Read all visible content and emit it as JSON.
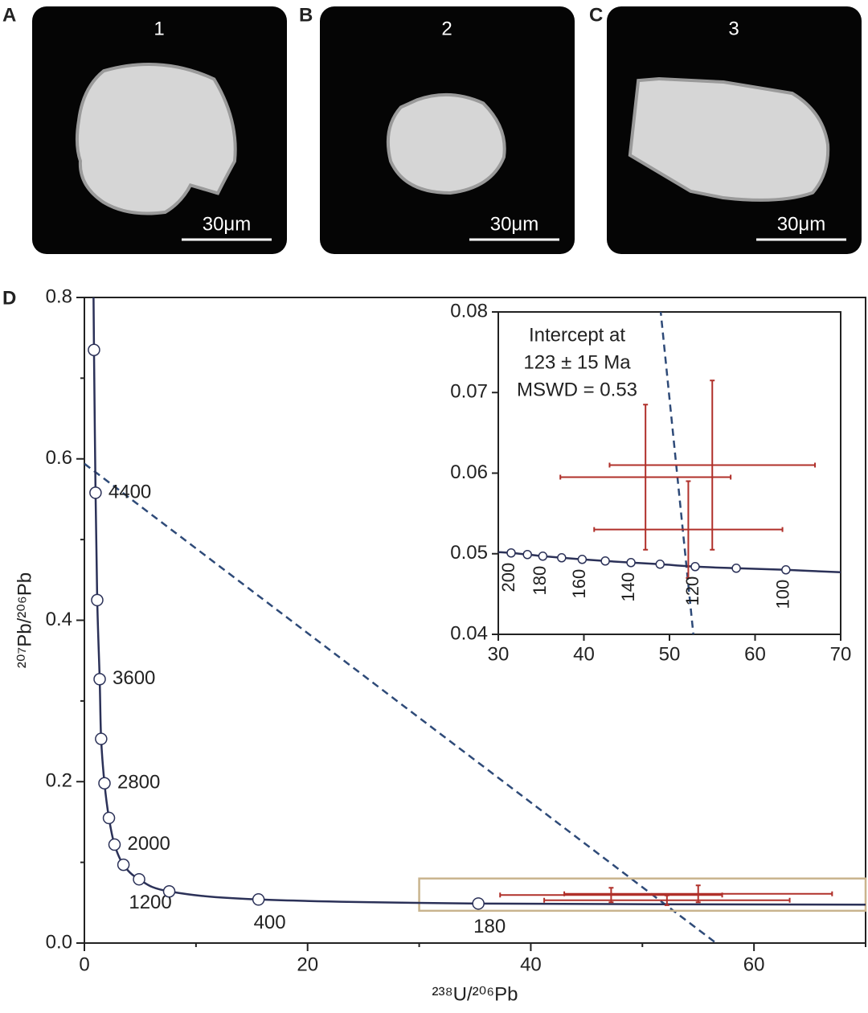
{
  "panels": [
    {
      "letter": "A",
      "number": "1",
      "scale_bar": "30μm"
    },
    {
      "letter": "B",
      "number": "2",
      "scale_bar": "30μm"
    },
    {
      "letter": "C",
      "number": "3",
      "scale_bar": "30μm"
    }
  ],
  "chart_data": [
    {
      "type": "line",
      "label": "D",
      "xlabel": "²³⁸U/²⁰⁶Pb",
      "ylabel": "²⁰⁷Pb/²⁰⁶Pb",
      "xlim": [
        0,
        70
      ],
      "ylim": [
        0,
        0.8
      ],
      "xticks": [
        0,
        20,
        40,
        60
      ],
      "yticks": [
        {
          "value": 0,
          "label": "0.0"
        },
        0.2,
        0.4,
        0.6,
        0.8
      ],
      "xminorticks": [
        10,
        30,
        50,
        70
      ],
      "yminorticks": [
        0.1,
        0.3,
        0.5,
        0.7
      ],
      "concordia": {
        "color": "#2b3158",
        "x": [
          0.82,
          0.86,
          1.0,
          1.15,
          1.37,
          1.5,
          1.8,
          2.2,
          2.7,
          3.5,
          4.9,
          7.6,
          15.6,
          35.3,
          70
        ],
        "y": [
          0.8,
          0.735,
          0.558,
          0.425,
          0.327,
          0.253,
          0.198,
          0.155,
          0.122,
          0.097,
          0.079,
          0.064,
          0.054,
          0.049,
          0.0476
        ]
      },
      "concordia_ages": {
        "x": [
          0.86,
          1.0,
          1.15,
          1.37,
          1.5,
          1.8,
          2.2,
          2.7,
          3.5,
          4.9,
          7.6,
          15.6,
          35.3
        ],
        "y": [
          0.735,
          0.558,
          0.425,
          0.327,
          0.253,
          0.198,
          0.155,
          0.122,
          0.097,
          0.079,
          0.064,
          0.054,
          0.049
        ],
        "labels": [
          null,
          4400,
          null,
          3600,
          null,
          2800,
          null,
          2000,
          null,
          1200,
          null,
          400,
          180
        ]
      },
      "discordia": {
        "color": "#2e4a78",
        "x": [
          0,
          56.6
        ],
        "y": [
          0.594,
          0
        ]
      },
      "points": {
        "color": "#b0302a",
        "x": [
          47.2,
          55,
          52.2
        ],
        "y": [
          0.0595,
          0.061,
          0.053
        ],
        "xerr": [
          9.95,
          12,
          11
        ],
        "yerr": [
          0.009,
          0.0105,
          0.006
        ]
      }
    },
    {
      "type": "inset",
      "xlim": [
        30,
        70
      ],
      "ylim": [
        0.04,
        0.08
      ],
      "xticks": [
        30,
        40,
        50,
        60,
        70
      ],
      "yticks": [
        0.04,
        0.05,
        0.06,
        0.07,
        0.08
      ],
      "annotation": [
        "Intercept at",
        "123 ± 15 Ma",
        "MSWD = 0.53"
      ],
      "concordia": {
        "color": "#2b3158",
        "x": [
          30,
          31.5,
          33.4,
          35.2,
          37.4,
          39.8,
          42.5,
          45.5,
          48.9,
          53,
          57.8,
          63.6,
          70
        ],
        "y": [
          0.0502,
          0.0501,
          0.0499,
          0.0497,
          0.0495,
          0.0493,
          0.0491,
          0.0489,
          0.0487,
          0.0484,
          0.0482,
          0.048,
          0.0477
        ]
      },
      "concordia_ages": {
        "x": [
          31.5,
          33.4,
          35.2,
          37.4,
          39.8,
          42.5,
          45.5,
          48.9,
          53,
          57.8,
          63.6
        ],
        "y": [
          0.0501,
          0.0499,
          0.0497,
          0.0495,
          0.0493,
          0.0491,
          0.0489,
          0.0487,
          0.0484,
          0.0482,
          0.048
        ],
        "labels": [
          200,
          null,
          180,
          null,
          160,
          null,
          140,
          null,
          120,
          null,
          100
        ]
      }
    }
  ]
}
